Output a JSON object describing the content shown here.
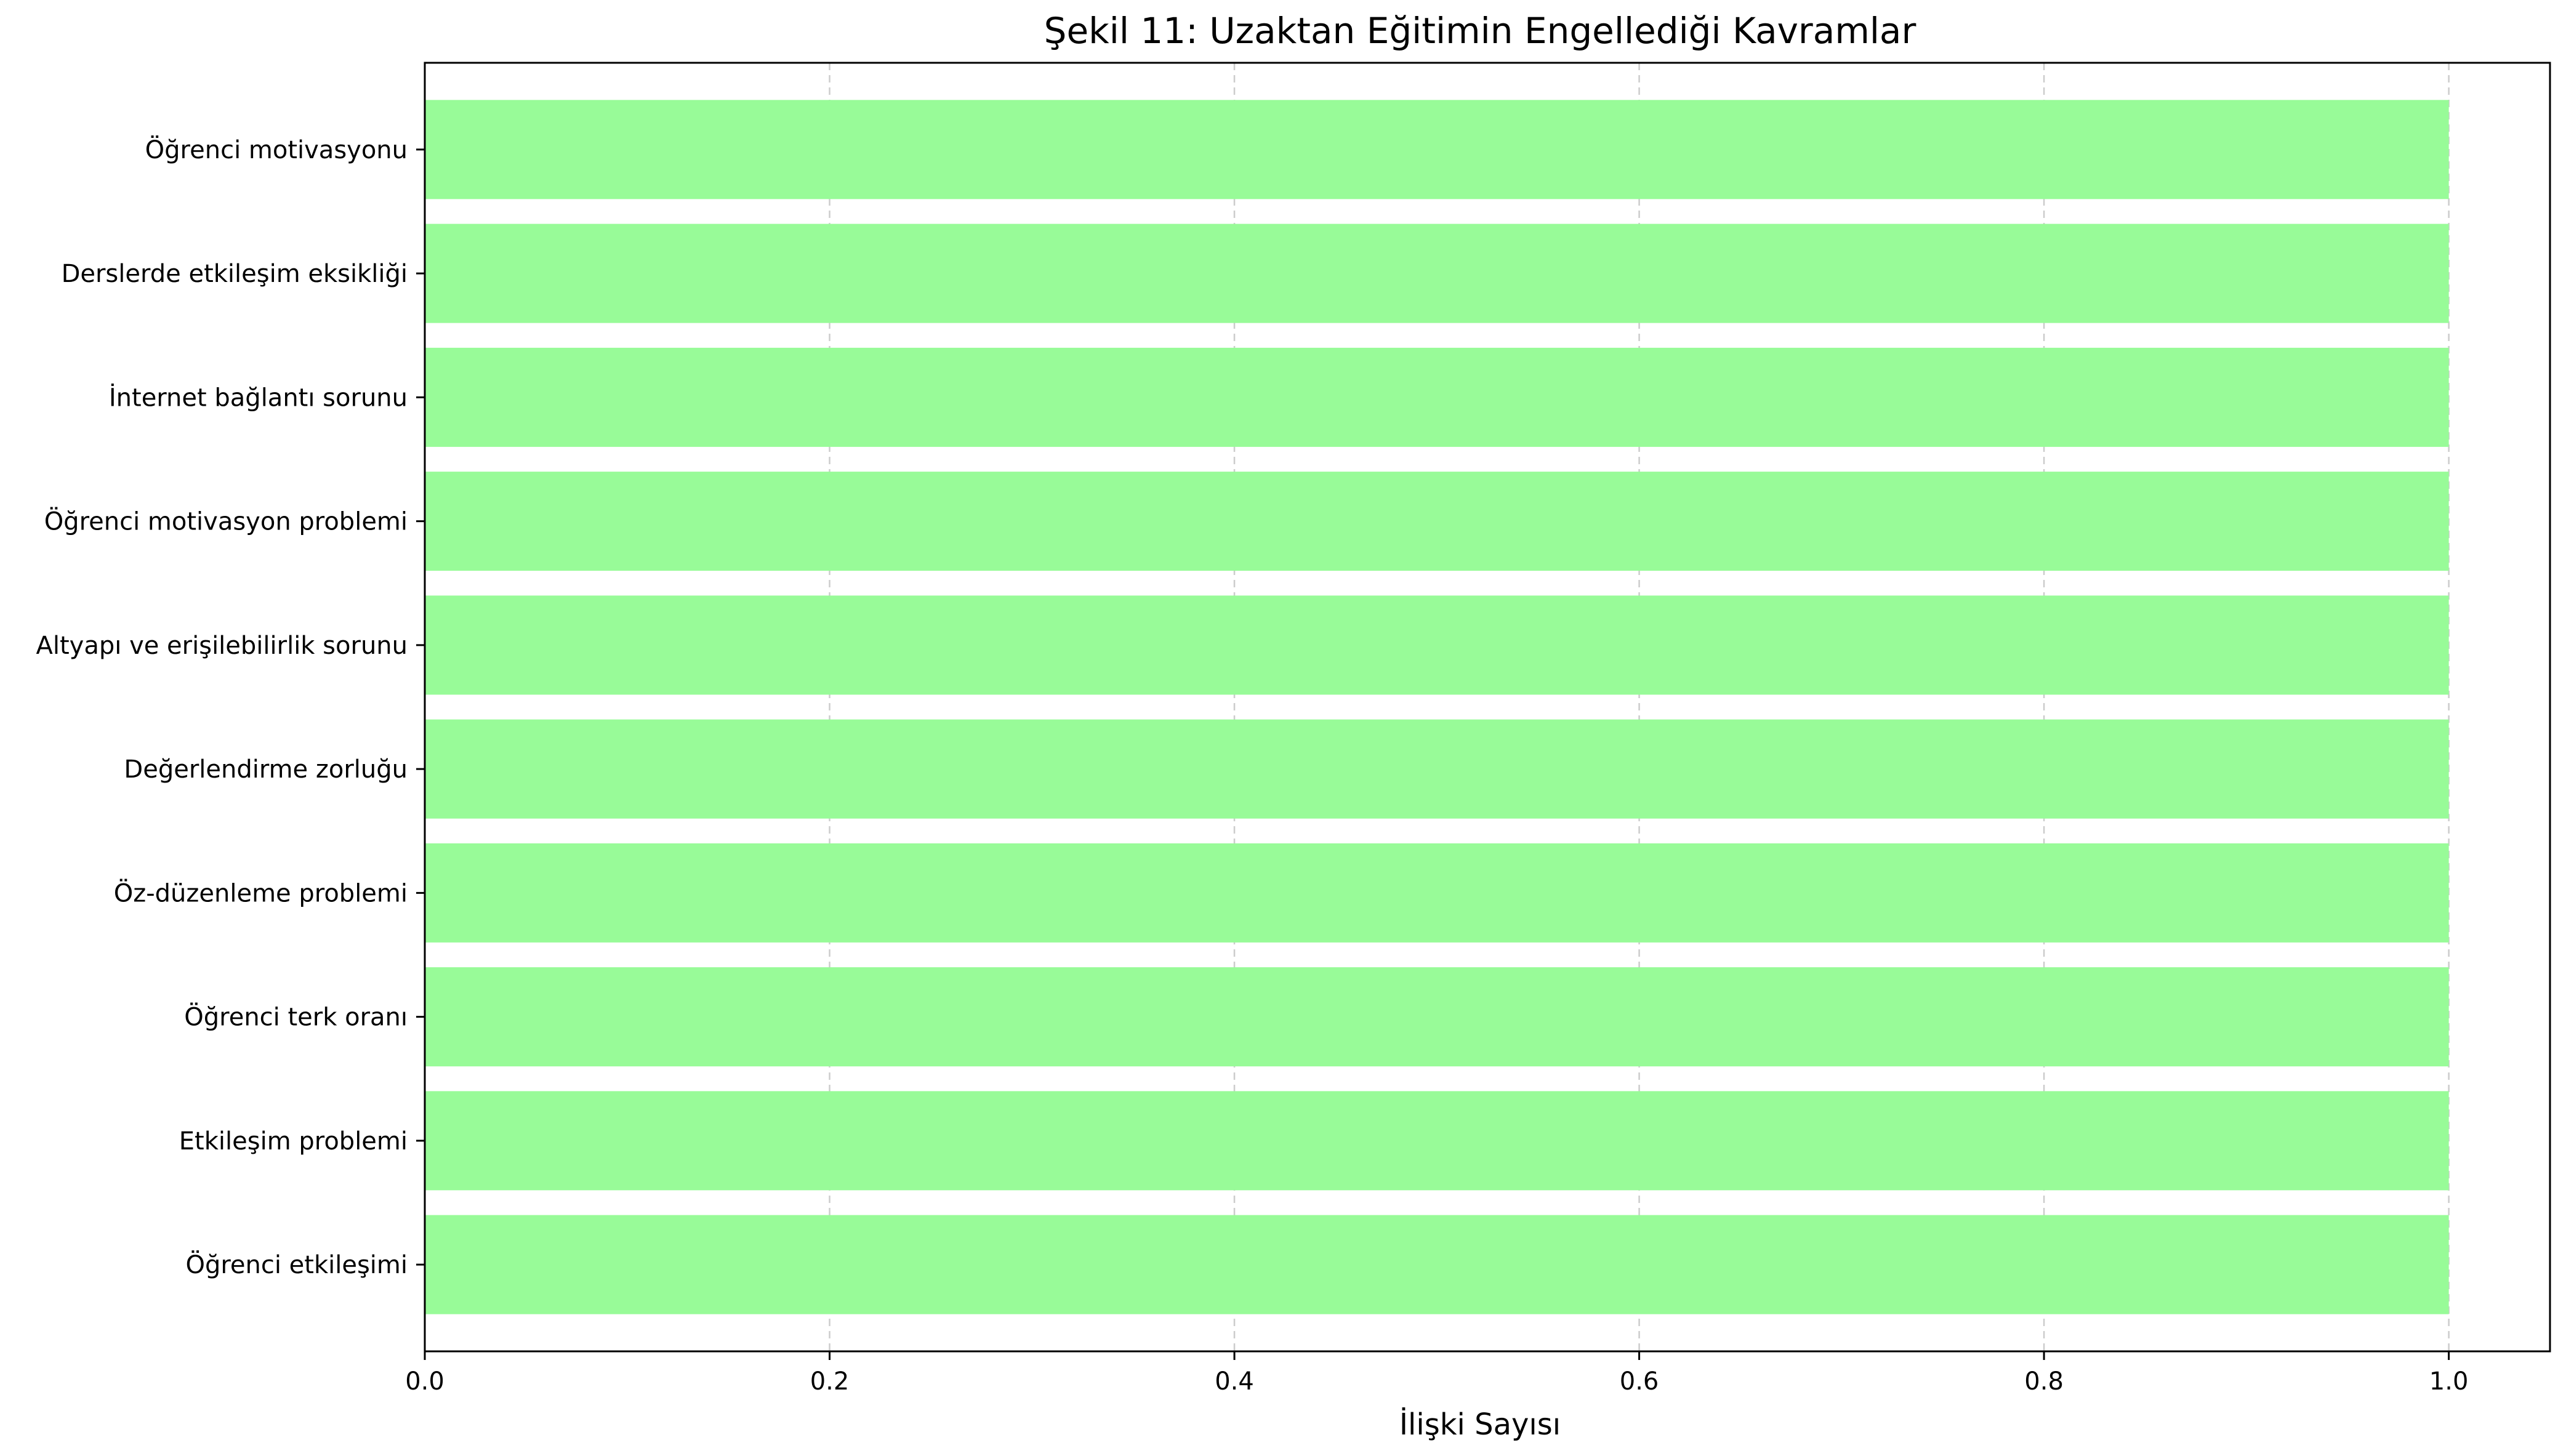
{
  "chart_data": {
    "type": "bar",
    "orientation": "horizontal",
    "title": "Şekil 11: Uzaktan Eğitimin Engellediği Kavramlar",
    "xlabel": "İlişki Sayısı",
    "ylabel": "",
    "categories": [
      "Öğrenci motivasyonu",
      "Derslerde etkileşim eksikliği",
      "İnternet bağlantı sorunu",
      "Öğrenci motivasyon problemi",
      "Altyapı ve erişilebilirlik sorunu",
      "Değerlendirme zorluğu",
      "Öz-düzenleme problemi",
      "Öğrenci terk oranı",
      "Etkileşim problemi",
      "Öğrenci etkileşimi"
    ],
    "values": [
      1,
      1,
      1,
      1,
      1,
      1,
      1,
      1,
      1,
      1
    ],
    "xlim": [
      0,
      1.05
    ],
    "xticks": [
      "0.0",
      "0.2",
      "0.4",
      "0.6",
      "0.8",
      "1.0"
    ],
    "xtick_values": [
      0,
      0.2,
      0.4,
      0.6,
      0.8,
      1.0
    ],
    "grid": "x-dashed",
    "bar_color": "#98fb98",
    "grid_color": "#cccccc"
  }
}
